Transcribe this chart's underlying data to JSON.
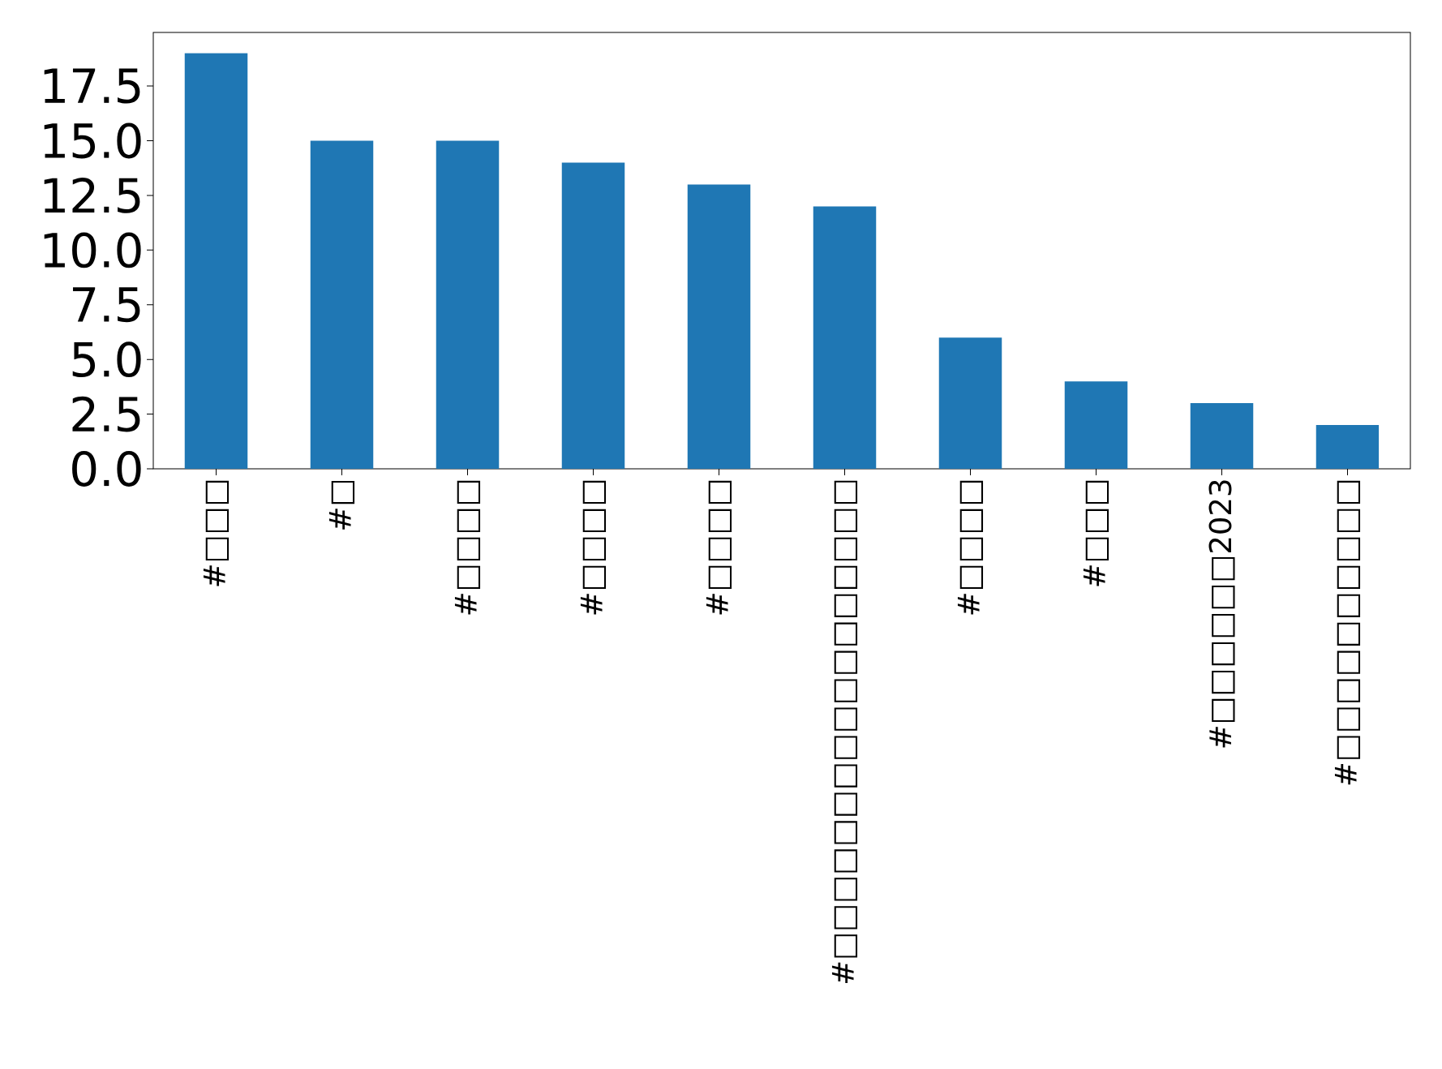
{
  "chart_data": {
    "type": "bar",
    "categories": [
      "#□□□",
      "#□",
      "#□□□□",
      "#□□□□",
      "#□□□□",
      "#□□□□□□□□□□□□□□□□□",
      "#□□□□",
      "#□□□",
      "#□□□□□□2023",
      "#□□□□□□□□□□"
    ],
    "values": [
      19,
      15,
      15,
      14,
      13,
      12,
      6,
      4,
      3,
      2
    ],
    "color": "#1f77b4",
    "ylim": [
      0,
      19.95
    ],
    "yticks": [
      {
        "value": 0,
        "label": "0.0"
      },
      2.5,
      {
        "value": 5,
        "label": "5.0"
      },
      7.5,
      {
        "value": 10,
        "label": "10.0"
      },
      12.5,
      {
        "value": 15,
        "label": "15.0"
      },
      17.5
    ]
  }
}
